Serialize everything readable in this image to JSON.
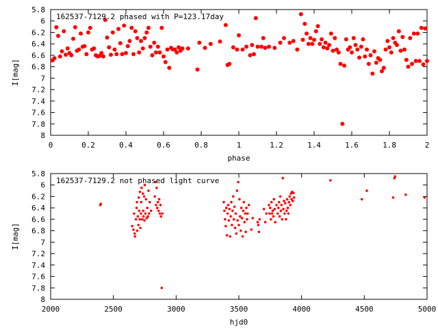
{
  "chart_data": [
    {
      "type": "scatter",
      "title": "162537-7129.2 phased with P=123.17day",
      "xlabel": "phase",
      "ylabel": "I[mag]",
      "xlim": [
        0,
        2
      ],
      "ylim": [
        5.8,
        8
      ],
      "y_inverted": true,
      "grid": false,
      "marker_color": "#ff0000",
      "xticks": [
        "0",
        "0.2",
        "0.4",
        "0.6",
        "0.8",
        "1",
        "1.2",
        "1.4",
        "1.6",
        "1.8",
        "2"
      ],
      "yticks": [
        "5.8",
        "6",
        "6.2",
        "6.4",
        "6.6",
        "6.8",
        "7",
        "7.2",
        "7.4",
        "7.6",
        "7.8",
        "8"
      ],
      "points": [
        [
          0.01,
          6.69
        ],
        [
          0.02,
          6.65
        ],
        [
          0.03,
          6.11
        ],
        [
          0.04,
          6.26
        ],
        [
          0.05,
          6.62
        ],
        [
          0.06,
          6.53
        ],
        [
          0.07,
          6.18
        ],
        [
          0.08,
          6.59
        ],
        [
          0.09,
          6.48
        ],
        [
          0.1,
          6.56
        ],
        [
          0.11,
          6.6
        ],
        [
          0.12,
          6.31
        ],
        [
          0.13,
          6.11
        ],
        [
          0.14,
          6.52
        ],
        [
          0.15,
          6.5
        ],
        [
          0.16,
          6.22
        ],
        [
          0.17,
          6.45
        ],
        [
          0.18,
          6.44
        ],
        [
          0.19,
          6.58
        ],
        [
          0.2,
          6.2
        ],
        [
          0.21,
          6.12
        ],
        [
          0.22,
          6.5
        ],
        [
          0.23,
          6.48
        ],
        [
          0.24,
          6.6
        ],
        [
          0.25,
          6.62
        ],
        [
          0.26,
          6.61
        ],
        [
          0.27,
          6.56
        ],
        [
          0.28,
          6.62
        ],
        [
          0.29,
          5.98
        ],
        [
          0.3,
          6.29
        ],
        [
          0.31,
          6.46
        ],
        [
          0.32,
          6.59
        ],
        [
          0.33,
          6.2
        ],
        [
          0.34,
          6.5
        ],
        [
          0.35,
          6.58
        ],
        [
          0.36,
          6.14
        ],
        [
          0.37,
          6.39
        ],
        [
          0.38,
          6.58
        ],
        [
          0.39,
          6.08
        ],
        [
          0.4,
          6.56
        ],
        [
          0.41,
          6.44
        ],
        [
          0.42,
          6.35
        ],
        [
          0.43,
          6.12
        ],
        [
          0.44,
          6.58
        ],
        [
          0.45,
          6.18
        ],
        [
          0.46,
          6.3
        ],
        [
          0.47,
          6.55
        ],
        [
          0.48,
          6.35
        ],
        [
          0.49,
          6.48
        ],
        [
          0.5,
          6.3
        ],
        [
          0.51,
          6.2
        ],
        [
          0.52,
          6.12
        ],
        [
          0.53,
          6.45
        ],
        [
          0.54,
          6.6
        ],
        [
          0.55,
          6.38
        ],
        [
          0.56,
          6.55
        ],
        [
          0.57,
          6.45
        ],
        [
          0.58,
          6.55
        ],
        [
          0.59,
          6.12
        ],
        [
          0.6,
          6.62
        ],
        [
          0.61,
          6.72
        ],
        [
          0.62,
          6.5
        ],
        [
          0.63,
          6.82
        ],
        [
          0.64,
          6.47
        ],
        [
          0.65,
          6.5
        ],
        [
          0.66,
          6.5
        ],
        [
          0.67,
          6.55
        ],
        [
          0.68,
          6.46
        ],
        [
          0.69,
          6.52
        ],
        [
          0.7,
          6.48
        ],
        [
          0.73,
          6.48
        ],
        [
          0.78,
          6.85
        ],
        [
          0.79,
          6.38
        ],
        [
          0.82,
          6.47
        ],
        [
          0.85,
          6.4
        ],
        [
          0.9,
          6.36
        ],
        [
          0.93,
          6.07
        ],
        [
          0.94,
          6.77
        ],
        [
          0.95,
          6.75
        ],
        [
          0.97,
          6.46
        ],
        [
          0.99,
          6.5
        ],
        [
          1.0,
          6.25
        ],
        [
          1.02,
          6.5
        ],
        [
          1.04,
          6.45
        ],
        [
          1.06,
          6.6
        ],
        [
          1.07,
          6.42
        ],
        [
          1.08,
          6.58
        ],
        [
          1.09,
          5.95
        ],
        [
          1.1,
          6.45
        ],
        [
          1.12,
          6.45
        ],
        [
          1.13,
          6.3
        ],
        [
          1.14,
          6.47
        ],
        [
          1.16,
          6.45
        ],
        [
          1.19,
          6.47
        ],
        [
          1.22,
          6.38
        ],
        [
          1.24,
          6.3
        ],
        [
          1.27,
          6.38
        ],
        [
          1.29,
          6.35
        ],
        [
          1.31,
          6.5
        ],
        [
          1.33,
          5.88
        ],
        [
          1.34,
          6.33
        ],
        [
          1.35,
          6.05
        ],
        [
          1.36,
          6.22
        ],
        [
          1.37,
          6.4
        ],
        [
          1.38,
          6.3
        ],
        [
          1.39,
          6.4
        ],
        [
          1.4,
          6.33
        ],
        [
          1.41,
          6.18
        ],
        [
          1.42,
          6.09
        ],
        [
          1.43,
          6.4
        ],
        [
          1.44,
          6.32
        ],
        [
          1.45,
          6.46
        ],
        [
          1.46,
          6.38
        ],
        [
          1.47,
          6.48
        ],
        [
          1.48,
          6.42
        ],
        [
          1.49,
          6.22
        ],
        [
          1.5,
          6.52
        ],
        [
          1.51,
          6.3
        ],
        [
          1.52,
          6.5
        ],
        [
          1.53,
          6.55
        ],
        [
          1.54,
          6.75
        ],
        [
          1.55,
          7.8
        ],
        [
          1.56,
          6.78
        ],
        [
          1.57,
          6.32
        ],
        [
          1.58,
          6.5
        ],
        [
          1.59,
          6.46
        ],
        [
          1.6,
          6.55
        ],
        [
          1.61,
          6.3
        ],
        [
          1.62,
          6.42
        ],
        [
          1.63,
          6.5
        ],
        [
          1.64,
          6.64
        ],
        [
          1.65,
          6.45
        ],
        [
          1.66,
          6.32
        ],
        [
          1.67,
          6.62
        ],
        [
          1.68,
          6.5
        ],
        [
          1.69,
          6.75
        ],
        [
          1.7,
          6.6
        ],
        [
          1.71,
          6.92
        ],
        [
          1.72,
          6.53
        ],
        [
          1.73,
          6.73
        ],
        [
          1.74,
          6.65
        ],
        [
          1.75,
          6.68
        ],
        [
          1.76,
          6.88
        ],
        [
          1.77,
          6.82
        ],
        [
          1.78,
          6.5
        ],
        [
          1.79,
          6.35
        ],
        [
          1.8,
          6.46
        ],
        [
          1.81,
          6.55
        ],
        [
          1.82,
          6.3
        ],
        [
          1.83,
          6.38
        ],
        [
          1.84,
          6.42
        ],
        [
          1.85,
          6.18
        ],
        [
          1.86,
          6.52
        ],
        [
          1.87,
          6.28
        ],
        [
          1.88,
          6.5
        ],
        [
          1.89,
          6.68
        ],
        [
          1.9,
          6.8
        ],
        [
          1.91,
          6.3
        ],
        [
          1.92,
          6.75
        ],
        [
          1.93,
          6.22
        ],
        [
          1.94,
          6.7
        ],
        [
          1.95,
          6.22
        ],
        [
          1.96,
          6.7
        ],
        [
          1.97,
          6.12
        ],
        [
          1.98,
          6.76
        ],
        [
          1.99,
          6.13
        ],
        [
          2.0,
          6.7
        ]
      ]
    },
    {
      "type": "scatter",
      "title": "162537-7129.2 not phased light curve",
      "xlabel": "hjd0",
      "ylabel": "I[mag]",
      "xlim": [
        2000,
        5000
      ],
      "ylim": [
        5.8,
        8
      ],
      "y_inverted": true,
      "grid": false,
      "marker_color": "#ff0000",
      "xticks": [
        "2000",
        "2500",
        "3000",
        "3500",
        "4000",
        "4500",
        "5000"
      ],
      "yticks": [
        "5.8",
        "6",
        "6.2",
        "6.4",
        "6.6",
        "6.8",
        "7",
        "7.2",
        "7.4",
        "7.6",
        "7.8",
        "8"
      ],
      "points": [
        [
          2395,
          6.35
        ],
        [
          2400,
          6.33
        ],
        [
          2650,
          6.72
        ],
        [
          2660,
          6.78
        ],
        [
          2665,
          6.5
        ],
        [
          2670,
          6.85
        ],
        [
          2672,
          6.9
        ],
        [
          2680,
          6.6
        ],
        [
          2685,
          6.4
        ],
        [
          2688,
          6.3
        ],
        [
          2690,
          6.8
        ],
        [
          2695,
          6.55
        ],
        [
          2700,
          6.7
        ],
        [
          2702,
          6.22
        ],
        [
          2705,
          6.45
        ],
        [
          2710,
          6.6
        ],
        [
          2712,
          6.12
        ],
        [
          2715,
          6.75
        ],
        [
          2720,
          6.5
        ],
        [
          2722,
          6.3
        ],
        [
          2725,
          6.05
        ],
        [
          2730,
          6.6
        ],
        [
          2735,
          6.15
        ],
        [
          2738,
          6.45
        ],
        [
          2740,
          6.55
        ],
        [
          2745,
          6.2
        ],
        [
          2748,
          6.62
        ],
        [
          2750,
          6.0
        ],
        [
          2755,
          6.5
        ],
        [
          2760,
          6.25
        ],
        [
          2765,
          6.58
        ],
        [
          2770,
          6.4
        ],
        [
          2775,
          6.55
        ],
        [
          2780,
          6.1
        ],
        [
          2785,
          6.5
        ],
        [
          2790,
          6.3
        ],
        [
          2800,
          6.45
        ],
        [
          2830,
          6.2
        ],
        [
          2835,
          5.95
        ],
        [
          2840,
          6.35
        ],
        [
          2845,
          6.05
        ],
        [
          2850,
          6.4
        ],
        [
          2855,
          6.3
        ],
        [
          2860,
          6.45
        ],
        [
          2865,
          6.25
        ],
        [
          2870,
          6.5
        ],
        [
          2875,
          6.35
        ],
        [
          2880,
          6.55
        ],
        [
          2885,
          7.8
        ],
        [
          2890,
          6.5
        ],
        [
          3380,
          6.3
        ],
        [
          3385,
          6.45
        ],
        [
          3390,
          6.6
        ],
        [
          3395,
          6.72
        ],
        [
          3400,
          6.4
        ],
        [
          3405,
          6.88
        ],
        [
          3410,
          6.5
        ],
        [
          3415,
          6.35
        ],
        [
          3420,
          6.62
        ],
        [
          3425,
          6.42
        ],
        [
          3430,
          6.9
        ],
        [
          3435,
          6.55
        ],
        [
          3440,
          6.3
        ],
        [
          3445,
          6.7
        ],
        [
          3450,
          6.45
        ],
        [
          3455,
          6.2
        ],
        [
          3460,
          6.6
        ],
        [
          3465,
          6.38
        ],
        [
          3470,
          6.75
        ],
        [
          3475,
          6.5
        ],
        [
          3480,
          6.85
        ],
        [
          3485,
          6.1
        ],
        [
          3490,
          6.62
        ],
        [
          3495,
          5.95
        ],
        [
          3500,
          6.7
        ],
        [
          3505,
          6.25
        ],
        [
          3510,
          6.55
        ],
        [
          3515,
          6.8
        ],
        [
          3520,
          6.4
        ],
        [
          3525,
          6.58
        ],
        [
          3530,
          6.9
        ],
        [
          3535,
          6.45
        ],
        [
          3540,
          6.3
        ],
        [
          3545,
          6.65
        ],
        [
          3550,
          6.5
        ],
        [
          3555,
          6.82
        ],
        [
          3560,
          6.4
        ],
        [
          3565,
          6.6
        ],
        [
          3570,
          6.5
        ],
        [
          3580,
          6.35
        ],
        [
          3600,
          6.78
        ],
        [
          3610,
          6.58
        ],
        [
          3650,
          6.65
        ],
        [
          3655,
          6.7
        ],
        [
          3660,
          6.82
        ],
        [
          3665,
          6.6
        ],
        [
          3700,
          6.42
        ],
        [
          3710,
          6.65
        ],
        [
          3720,
          6.5
        ],
        [
          3740,
          6.35
        ],
        [
          3745,
          6.5
        ],
        [
          3750,
          6.4
        ],
        [
          3755,
          6.6
        ],
        [
          3760,
          6.3
        ],
        [
          3765,
          6.5
        ],
        [
          3770,
          6.45
        ],
        [
          3775,
          6.55
        ],
        [
          3780,
          6.25
        ],
        [
          3785,
          6.42
        ],
        [
          3790,
          6.65
        ],
        [
          3800,
          6.35
        ],
        [
          3810,
          6.5
        ],
        [
          3815,
          6.4
        ],
        [
          3820,
          6.3
        ],
        [
          3825,
          6.55
        ],
        [
          3830,
          6.2
        ],
        [
          3835,
          6.45
        ],
        [
          3840,
          6.35
        ],
        [
          3845,
          6.6
        ],
        [
          3850,
          5.88
        ],
        [
          3855,
          6.42
        ],
        [
          3860,
          6.28
        ],
        [
          3865,
          6.5
        ],
        [
          3870,
          6.32
        ],
        [
          3875,
          6.6
        ],
        [
          3880,
          6.45
        ],
        [
          3885,
          6.25
        ],
        [
          3890,
          6.4
        ],
        [
          3895,
          6.5
        ],
        [
          3900,
          6.3
        ],
        [
          3905,
          6.2
        ],
        [
          3910,
          6.35
        ],
        [
          3915,
          6.15
        ],
        [
          3920,
          6.25
        ],
        [
          3925,
          6.12
        ],
        [
          3930,
          6.28
        ],
        [
          3935,
          6.14
        ],
        [
          3940,
          6.22
        ],
        [
          4230,
          5.92
        ],
        [
          4480,
          6.25
        ],
        [
          4520,
          6.1
        ],
        [
          4730,
          6.22
        ],
        [
          4740,
          5.88
        ],
        [
          4745,
          5.85
        ],
        [
          4830,
          6.17
        ],
        [
          4980,
          6.22
        ]
      ]
    }
  ]
}
